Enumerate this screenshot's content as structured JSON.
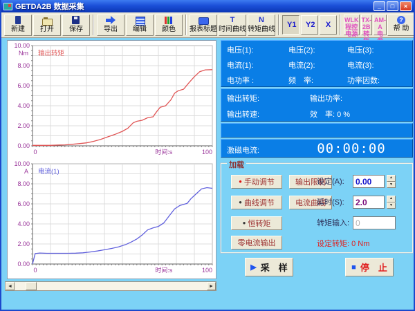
{
  "window": {
    "title": "GETDA2B 数据采集",
    "controls": {
      "minimize": "_",
      "restore": "□",
      "close": "×"
    }
  },
  "toolbar": {
    "buttons": [
      {
        "label": "新建"
      },
      {
        "label": "打开"
      },
      {
        "label": "保存"
      },
      {
        "label": "导出"
      },
      {
        "label": "编辑"
      },
      {
        "label": "颜色"
      },
      {
        "label": "报表标题"
      },
      {
        "label": "时间曲线",
        "glyph": "T"
      },
      {
        "label": "转矩曲线",
        "glyph": "N"
      }
    ],
    "axis_buttons": [
      {
        "label": "Y1"
      },
      {
        "label": "Y2"
      },
      {
        "label": "X"
      }
    ],
    "device_buttons": [
      {
        "line1": "WLK",
        "line2": "程控电源"
      },
      {
        "line1": "TX-2B",
        "line2": "转矩转速"
      },
      {
        "line1": "AM-A",
        "line2": "电参数"
      }
    ],
    "help_label": "帮 助",
    "help_glyph": "?"
  },
  "measurements": {
    "grid_a": [
      [
        "电压(1):",
        "电压(2):",
        "电压(3):"
      ],
      [
        "电流(1):",
        "电流(2):",
        "电流(3):"
      ],
      [
        "电功率 :",
        "频　率:",
        "功率因数:"
      ]
    ],
    "grid_b": [
      [
        "输出转矩:",
        "输出功率:"
      ],
      [
        "输出转速:",
        "效　率: 0 %"
      ]
    ],
    "excitation_label": "激磁电流:",
    "timer": "00:00:00"
  },
  "load_panel": {
    "legend": "加载",
    "radio_buttons": [
      {
        "label": "手动调节"
      },
      {
        "label": "曲线调节"
      },
      {
        "label": "恒转矩"
      }
    ],
    "action_buttons": [
      {
        "label": "输出限制"
      },
      {
        "label": "电流曲线"
      }
    ],
    "zero_current_button": "零电流输出",
    "fields": [
      {
        "label": "设定(A):",
        "value": "0.00"
      },
      {
        "label": "延时(S):",
        "value": "2.0"
      },
      {
        "label": "转矩输入:",
        "value": "0"
      }
    ],
    "set_torque_text": "设定转矩: 0 Nm"
  },
  "actions": {
    "sample": "采　样",
    "stop": "停　止"
  },
  "icons": {
    "scroll_left": "◄",
    "scroll_right": "►",
    "spin_up": "▲",
    "spin_down": "▼",
    "radio_dot": "●",
    "play": "▶",
    "stop_square": "■"
  },
  "colors": {
    "torque_line": "#e05555",
    "current_line": "#6060dd",
    "axis_label": "#993399",
    "panel_blue": "#0a7ee6",
    "app_background": "#7cd2f6"
  },
  "chart_data": [
    {
      "type": "line",
      "title": "输出转矩",
      "unit": "Nm",
      "xlabel": "时间:s",
      "color": "#e05555",
      "xlim": [
        0,
        100
      ],
      "ylim": [
        0,
        10
      ],
      "x": [
        0,
        5,
        10,
        15,
        18,
        22,
        26,
        30,
        34,
        38,
        42,
        46,
        50,
        53,
        56,
        58,
        61,
        64,
        67,
        69,
        71,
        74,
        77,
        79,
        81,
        84,
        87,
        90,
        93,
        96,
        100
      ],
      "y": [
        0.05,
        0.05,
        0.05,
        0.08,
        0.1,
        0.15,
        0.22,
        0.3,
        0.45,
        0.65,
        0.9,
        1.15,
        1.45,
        1.75,
        2.3,
        2.45,
        2.55,
        2.8,
        2.9,
        3.4,
        3.85,
        4.0,
        4.6,
        5.25,
        5.5,
        5.65,
        6.3,
        6.9,
        7.4,
        7.58,
        7.6
      ]
    },
    {
      "type": "line",
      "title": "电流(1)",
      "unit": "A",
      "xlabel": "时间:s",
      "color": "#6060dd",
      "xlim": [
        0,
        100
      ],
      "ylim": [
        0,
        10
      ],
      "x": [
        0,
        1.5,
        4,
        8,
        12,
        16,
        20,
        24,
        28,
        32,
        36,
        40,
        44,
        48,
        52,
        55,
        58,
        61,
        64,
        67,
        70,
        73,
        76,
        79,
        82,
        84,
        86,
        88,
        91,
        94,
        97,
        100
      ],
      "y": [
        0,
        1.05,
        1.1,
        1.07,
        1.07,
        1.07,
        1.07,
        1.08,
        1.12,
        1.2,
        1.3,
        1.42,
        1.55,
        1.72,
        1.95,
        2.2,
        2.5,
        2.9,
        3.4,
        3.6,
        3.75,
        4.1,
        4.8,
        5.5,
        5.85,
        5.95,
        6.05,
        6.5,
        7.0,
        7.5,
        7.62,
        7.55
      ]
    }
  ]
}
